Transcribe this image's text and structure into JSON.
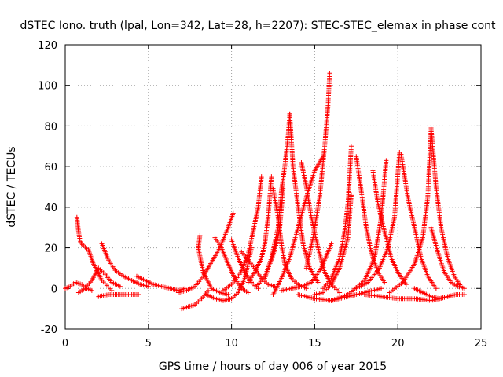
{
  "chart_data": {
    "type": "scatter",
    "title": "dSTEC Iono. truth (lpal, Lon=342, Lat=28, h=2207): STEC-STEC_elemax in phase cont",
    "xlabel": "GPS time / hours of day 006 of year 2015",
    "ylabel": "dSTEC  / TECUs",
    "xlim": [
      0,
      25
    ],
    "ylim": [
      -20,
      120
    ],
    "xticks": [
      "0",
      "5",
      "10",
      "15",
      "20",
      "25"
    ],
    "yticks": [
      "-20",
      "0",
      "20",
      "40",
      "60",
      "80",
      "100",
      "120"
    ],
    "grid": true,
    "marker": "plus",
    "color": "#ff0000",
    "passes": [
      {
        "x": [
          0.0,
          0.3,
          0.6,
          1.0,
          1.3,
          1.6
        ],
        "y": [
          0,
          1,
          3,
          2,
          0,
          -1
        ]
      },
      {
        "x": [
          0.7,
          0.8,
          0.9,
          1.1,
          1.4,
          1.7,
          2.2,
          2.8
        ],
        "y": [
          35,
          28,
          23,
          21,
          19,
          12,
          4,
          -1
        ]
      },
      {
        "x": [
          0.8,
          1.2,
          1.6,
          2.0,
          2.4,
          2.8,
          3.3
        ],
        "y": [
          -2,
          0,
          4,
          10,
          7,
          3,
          1
        ]
      },
      {
        "x": [
          2.2,
          2.6,
          3.0,
          3.5,
          4.0,
          4.5,
          5.0
        ],
        "y": [
          22,
          14,
          9,
          6,
          4,
          2,
          1
        ]
      },
      {
        "x": [
          2.0,
          2.6,
          3.2,
          3.8,
          4.4
        ],
        "y": [
          -4,
          -3,
          -3,
          -3,
          -3
        ]
      },
      {
        "x": [
          4.3,
          4.8,
          5.3,
          5.8,
          6.3,
          6.8,
          7.2
        ],
        "y": [
          6,
          4,
          2,
          1,
          0,
          -1,
          0
        ]
      },
      {
        "x": [
          7.0,
          7.4,
          7.8,
          8.2,
          8.6
        ],
        "y": [
          -10,
          -9,
          -8,
          -5,
          -1
        ]
      },
      {
        "x": [
          8.1,
          8.0,
          8.3,
          8.8,
          9.3,
          9.8
        ],
        "y": [
          26,
          20,
          8,
          0,
          -2,
          -3
        ]
      },
      {
        "x": [
          6.8,
          7.3,
          7.8,
          8.3,
          8.8,
          9.3,
          9.8,
          10.1
        ],
        "y": [
          -2,
          -1,
          1,
          6,
          13,
          20,
          30,
          37
        ]
      },
      {
        "x": [
          9.0,
          9.4,
          9.8,
          10.2,
          10.6,
          11.0
        ],
        "y": [
          25,
          20,
          12,
          5,
          0,
          -2
        ]
      },
      {
        "x": [
          10.0,
          10.4,
          10.8,
          11.2,
          11.6
        ],
        "y": [
          24,
          15,
          8,
          3,
          0
        ]
      },
      {
        "x": [
          8.5,
          9.0,
          9.5,
          10.0,
          10.4,
          10.8,
          11.2
        ],
        "y": [
          -3,
          -5,
          -6,
          -5,
          -2,
          5,
          20
        ]
      },
      {
        "x": [
          9.5,
          10.0,
          10.5,
          11.0,
          11.3,
          11.6,
          11.8
        ],
        "y": [
          -1,
          2,
          7,
          17,
          28,
          40,
          55
        ]
      },
      {
        "x": [
          10.6,
          11.0,
          11.4,
          11.8,
          12.2,
          12.6
        ],
        "y": [
          18,
          14,
          10,
          5,
          2,
          1
        ]
      },
      {
        "x": [
          11.0,
          11.4,
          11.8,
          12.0,
          12.2,
          12.4
        ],
        "y": [
          3,
          8,
          15,
          22,
          35,
          55
        ]
      },
      {
        "x": [
          11.5,
          12.0,
          12.4,
          12.7,
          12.9,
          13.1
        ],
        "y": [
          1,
          6,
          14,
          22,
          30,
          49
        ]
      },
      {
        "x": [
          12.5,
          12.8,
          13.0,
          13.2,
          13.6,
          14.0,
          14.5
        ],
        "y": [
          49,
          35,
          22,
          12,
          5,
          2,
          0
        ]
      },
      {
        "x": [
          12.0,
          12.4,
          12.8,
          13.0,
          13.2,
          13.4,
          13.5
        ],
        "y": [
          5,
          15,
          30,
          48,
          60,
          75,
          86
        ]
      },
      {
        "x": [
          13.5,
          13.7,
          14.0,
          14.3,
          14.7,
          15.2
        ],
        "y": [
          86,
          60,
          40,
          22,
          10,
          3
        ]
      },
      {
        "x": [
          12.5,
          13.0,
          13.5,
          14.0,
          14.5,
          15.0,
          15.5
        ],
        "y": [
          -3,
          5,
          15,
          30,
          45,
          58,
          65
        ]
      },
      {
        "x": [
          14.2,
          14.5,
          14.8,
          15.2,
          15.6,
          16.0,
          16.5
        ],
        "y": [
          62,
          50,
          35,
          20,
          8,
          2,
          -2
        ]
      },
      {
        "x": [
          14.5,
          14.9,
          15.3,
          15.6,
          15.8,
          15.9
        ],
        "y": [
          10,
          25,
          45,
          70,
          90,
          106
        ]
      },
      {
        "x": [
          13.0,
          13.6,
          14.2,
          14.8,
          15.4,
          16.0
        ],
        "y": [
          -1,
          0,
          1,
          3,
          10,
          22
        ]
      },
      {
        "x": [
          15.5,
          16.0,
          16.5,
          16.8,
          17.0,
          17.2
        ],
        "y": [
          0,
          5,
          15,
          28,
          42,
          70
        ]
      },
      {
        "x": [
          15.0,
          15.5,
          16.0,
          16.5,
          17.0,
          17.2
        ],
        "y": [
          -3,
          -2,
          2,
          10,
          25,
          46
        ]
      },
      {
        "x": [
          17.5,
          17.8,
          18.1,
          18.4,
          18.8,
          19.2
        ],
        "y": [
          65,
          48,
          30,
          18,
          8,
          3
        ]
      },
      {
        "x": [
          14.0,
          15.0,
          16.0,
          17.0,
          18.0,
          19.0
        ],
        "y": [
          -3,
          -5,
          -6,
          -4,
          -2,
          0
        ]
      },
      {
        "x": [
          16.0,
          17.0,
          18.0,
          18.6,
          19.0,
          19.3
        ],
        "y": [
          -6,
          -3,
          4,
          15,
          35,
          63
        ]
      },
      {
        "x": [
          18.5,
          18.8,
          19.2,
          19.6,
          20.0,
          20.5
        ],
        "y": [
          58,
          42,
          28,
          15,
          8,
          2
        ]
      },
      {
        "x": [
          17.5,
          18.2,
          18.9,
          19.4,
          19.8,
          20.1
        ],
        "y": [
          0,
          3,
          10,
          20,
          35,
          67
        ]
      },
      {
        "x": [
          20.2,
          20.6,
          21.0,
          21.4,
          21.8,
          22.3
        ],
        "y": [
          66,
          45,
          30,
          15,
          6,
          0
        ]
      },
      {
        "x": [
          18.0,
          19.0,
          20.0,
          21.0,
          22.0,
          23.0
        ],
        "y": [
          -3,
          -4,
          -5,
          -5,
          -6,
          -4
        ]
      },
      {
        "x": [
          19.5,
          20.3,
          21.0,
          21.5,
          21.8,
          22.0
        ],
        "y": [
          -2,
          3,
          12,
          25,
          45,
          79
        ]
      },
      {
        "x": [
          22.0,
          22.3,
          22.6,
          23.0,
          23.4,
          23.8
        ],
        "y": [
          79,
          50,
          30,
          15,
          6,
          1
        ]
      },
      {
        "x": [
          21.0,
          21.5,
          22.0,
          22.5,
          23.0,
          23.5,
          24.0
        ],
        "y": [
          0,
          -2,
          -4,
          -5,
          -4,
          -3,
          -3
        ]
      },
      {
        "x": [
          22.0,
          22.4,
          22.8,
          23.2,
          23.6,
          24.0
        ],
        "y": [
          30,
          18,
          8,
          3,
          1,
          0
        ]
      }
    ]
  }
}
